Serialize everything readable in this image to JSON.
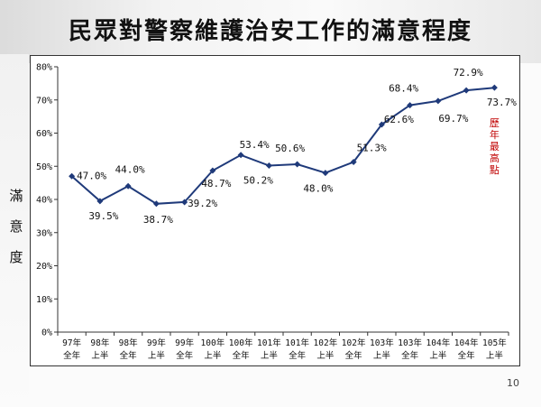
{
  "page": {
    "title": "民眾對警察維護治安工作的滿意程度",
    "y_side_label_chars": [
      "滿",
      "意",
      "度"
    ],
    "page_number": "10",
    "note": "歷年最高點",
    "colors": {
      "line": "#1f3a7a",
      "note": "#c00000",
      "text": "#111111"
    }
  },
  "chart_data": {
    "type": "line",
    "title": "民眾對警察維護治安工作的滿意程度",
    "ylabel": "滿意度",
    "xlabel": "",
    "ylim": [
      0,
      80
    ],
    "yticks": [
      0,
      10,
      20,
      30,
      40,
      50,
      60,
      70,
      80
    ],
    "ytick_labels": [
      "0%",
      "10%",
      "20%",
      "30%",
      "40%",
      "50%",
      "60%",
      "70%",
      "80%"
    ],
    "grid": false,
    "categories": [
      [
        "97年",
        "全年"
      ],
      [
        "98年",
        "上半"
      ],
      [
        "98年",
        "全年"
      ],
      [
        "99年",
        "上半"
      ],
      [
        "99年",
        "全年"
      ],
      [
        "100年",
        "上半"
      ],
      [
        "100年",
        "全年"
      ],
      [
        "101年",
        "上半"
      ],
      [
        "101年",
        "全年"
      ],
      [
        "102年",
        "上半"
      ],
      [
        "102年",
        "全年"
      ],
      [
        "103年",
        "上半"
      ],
      [
        "103年",
        "全年"
      ],
      [
        "104年",
        "上半"
      ],
      [
        "104年",
        "全年"
      ],
      [
        "105年",
        "上半"
      ]
    ],
    "series": [
      {
        "values": [
          47.0,
          39.5,
          44.0,
          38.7,
          39.2,
          48.7,
          53.4,
          50.2,
          50.6,
          48.0,
          51.3,
          62.6,
          68.4,
          69.7,
          72.9,
          73.7
        ],
        "labels": [
          "47.0%",
          "39.5%",
          "44.0%",
          "38.7%",
          "39.2%",
          "48.7%",
          "53.4%",
          "50.2%",
          "50.6%",
          "48.0%",
          "51.3%",
          "62.6%",
          "68.4%",
          "69.7%",
          "72.9%",
          "73.7%"
        ]
      }
    ],
    "annotation": "歷年最高點"
  }
}
